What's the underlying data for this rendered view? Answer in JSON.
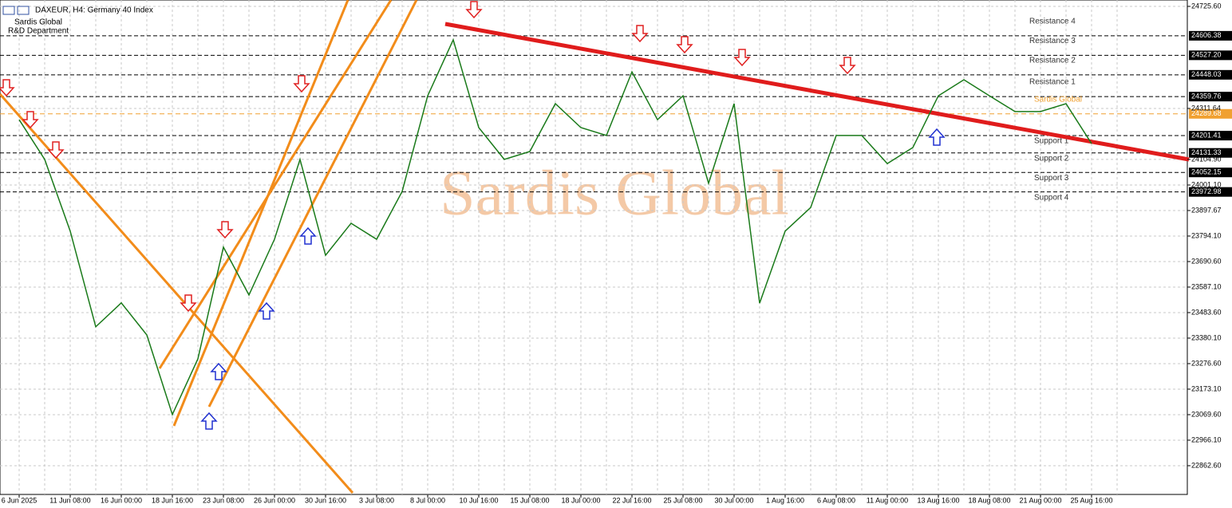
{
  "chart_data": {
    "type": "line",
    "title": "DAXEUR, H4:  Germany 40 Index",
    "subtitle": [
      "Sardis Global",
      "R&D Department"
    ],
    "watermark": "Sardis Global",
    "categories": [
      "6 Jun 2025",
      null,
      "11 Jun 08:00",
      null,
      "16 Jun 00:00",
      null,
      "18 Jun 16:00",
      null,
      "23 Jun 08:00",
      null,
      "26 Jun 00:00",
      null,
      "30 Jun 16:00",
      null,
      "3 Jul 08:00",
      null,
      "8 Jul 00:00",
      null,
      "10 Jul 16:00",
      null,
      "15 Jul 08:00",
      null,
      "18 Jul 00:00",
      null,
      "22 Jul 16:00",
      null,
      "25 Jul 08:00",
      null,
      "30 Jul 00:00",
      null,
      "1 Aug 16:00",
      null,
      "6 Aug 08:00",
      null,
      "11 Aug 00:00",
      null,
      "13 Aug 16:00",
      null,
      "18 Aug 08:00",
      null,
      "21 Aug 00:00",
      null,
      "25 Aug 16:00",
      null
    ],
    "series": [
      {
        "color": "#1a7a1a",
        "values": [
          24266,
          24105,
          23814,
          23426,
          23523,
          23393,
          23070,
          23296,
          23749,
          23555,
          23781,
          24105,
          23716,
          23846,
          23781,
          23975,
          24363,
          24590,
          24234,
          24105,
          24137,
          24331,
          24234,
          24202,
          24460,
          24266,
          24363,
          24008,
          24331,
          23522,
          23814,
          23910,
          24202,
          24202,
          24088,
          24153,
          24363,
          24428,
          24363,
          24299,
          24299,
          24331,
          24169,
          null
        ]
      }
    ],
    "levels": {
      "names": [
        "Resistance 4",
        "Resistance 3",
        "Resistance 2",
        "Resistance 1",
        "Sardis Global",
        "Support 1",
        "Support 2",
        "Support 3",
        "Support 4"
      ],
      "values": [
        24606.38,
        24527.2,
        24448.03,
        24359.76,
        24289.68,
        24201.41,
        24131.33,
        24052.15,
        23972.98
      ],
      "value_labels": [
        "24606.38",
        "24527.20",
        "24448.03",
        "24359.76",
        "24289.68",
        "24201.41",
        "24131.33",
        "24052.15",
        "23972.98"
      ],
      "colors": [
        "#000000",
        "#000000",
        "#000000",
        "#000000",
        "#f0a030",
        "#000000",
        "#000000",
        "#000000",
        "#000000"
      ]
    },
    "ylim": [
      22746,
      24751.5
    ],
    "yticks": [
      {
        "value": 24725.6,
        "label": "24725.60"
      },
      24311.64,
      {
        "value": 24104.9,
        "label": "24104.90"
      },
      {
        "value": 24001.1,
        "label": "24001.10"
      },
      23897.67,
      {
        "value": 23794.1,
        "label": "23794.10"
      },
      {
        "value": 23690.6,
        "label": "23690.60"
      },
      {
        "value": 23587.1,
        "label": "23587.10"
      },
      {
        "value": 23483.6,
        "label": "23483.60"
      },
      {
        "value": 23380.1,
        "label": "23380.10"
      },
      {
        "value": 23276.6,
        "label": "23276.60"
      },
      {
        "value": 23173.1,
        "label": "23173.10"
      },
      {
        "value": 23069.6,
        "label": "23069.60"
      },
      {
        "value": 22966.1,
        "label": "22966.10"
      },
      {
        "value": 22862.6,
        "label": "22862.60"
      }
    ],
    "grid": true
  }
}
